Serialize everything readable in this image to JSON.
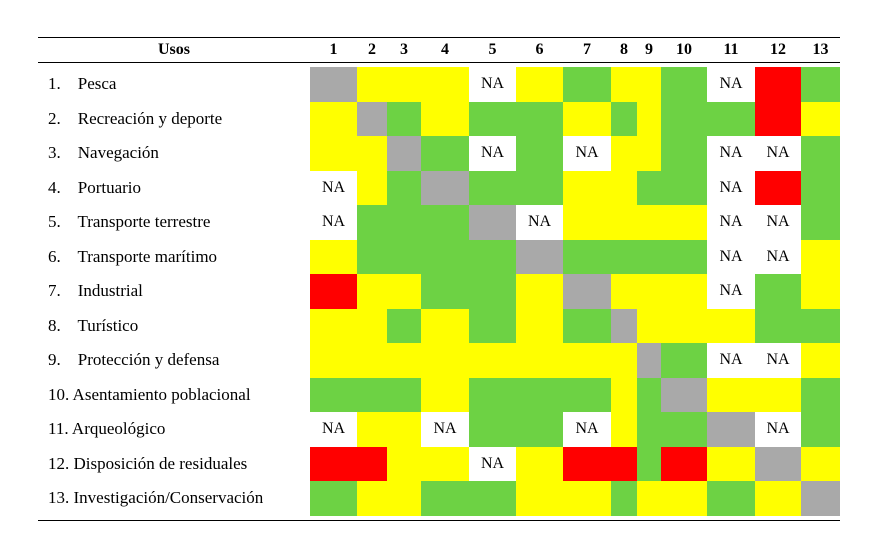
{
  "table": {
    "header_label": "Usos",
    "columns": [
      "1",
      "2",
      "3",
      "4",
      "5",
      "6",
      "7",
      "8",
      "9",
      "10",
      "11",
      "12",
      "13"
    ],
    "rows": [
      {
        "label": "1.    Pesca",
        "cells": [
          "gray",
          "yellow",
          "yellow",
          "yellow",
          "NA",
          "yellow",
          "green",
          "yellow",
          "yellow",
          "green",
          "NA",
          "red",
          "green"
        ]
      },
      {
        "label": "2.    Recreación y deporte",
        "cells": [
          "yellow",
          "gray",
          "green",
          "yellow",
          "green",
          "green",
          "yellow",
          "green",
          "yellow",
          "green",
          "green",
          "red",
          "yellow"
        ]
      },
      {
        "label": "3.    Navegación",
        "cells": [
          "yellow",
          "yellow",
          "gray",
          "green",
          "NA",
          "green",
          "NA",
          "yellow",
          "yellow",
          "green",
          "NA",
          "NA",
          "green"
        ]
      },
      {
        "label": "4.    Portuario",
        "cells": [
          "NA",
          "yellow",
          "green",
          "gray",
          "green",
          "green",
          "yellow",
          "yellow",
          "green",
          "green",
          "NA",
          "red",
          "green"
        ]
      },
      {
        "label": "5.    Transporte terrestre",
        "cells": [
          "NA",
          "green",
          "green",
          "green",
          "gray",
          "NA",
          "yellow",
          "yellow",
          "yellow",
          "yellow",
          "NA",
          "NA",
          "green"
        ]
      },
      {
        "label": "6.    Transporte marítimo",
        "cells": [
          "yellow",
          "green",
          "green",
          "green",
          "green",
          "gray",
          "green",
          "green",
          "green",
          "green",
          "NA",
          "NA",
          "yellow"
        ]
      },
      {
        "label": "7.    Industrial",
        "cells": [
          "red",
          "yellow",
          "yellow",
          "green",
          "green",
          "yellow",
          "gray",
          "yellow",
          "yellow",
          "yellow",
          "NA",
          "green",
          "yellow"
        ]
      },
      {
        "label": "8.    Turístico",
        "cells": [
          "yellow",
          "yellow",
          "green",
          "yellow",
          "green",
          "yellow",
          "green",
          "gray",
          "yellow",
          "yellow",
          "yellow",
          "green",
          "green"
        ]
      },
      {
        "label": "9.    Protección y defensa",
        "cells": [
          "yellow",
          "yellow",
          "yellow",
          "yellow",
          "yellow",
          "yellow",
          "yellow",
          "yellow",
          "gray",
          "green",
          "NA",
          "NA",
          "yellow"
        ]
      },
      {
        "label": "10. Asentamiento poblacional",
        "cells": [
          "green",
          "green",
          "green",
          "yellow",
          "green",
          "green",
          "green",
          "yellow",
          "green",
          "gray",
          "yellow",
          "yellow",
          "green"
        ]
      },
      {
        "label": "11. Arqueológico",
        "cells": [
          "NA",
          "yellow",
          "yellow",
          "NA",
          "green",
          "green",
          "NA",
          "yellow",
          "green",
          "green",
          "gray",
          "NA",
          "green"
        ]
      },
      {
        "label": "12. Disposición de residuales",
        "cells": [
          "red",
          "red",
          "yellow",
          "yellow",
          "NA",
          "yellow",
          "red",
          "red",
          "green",
          "red",
          "yellow",
          "gray",
          "yellow"
        ]
      },
      {
        "label": "13. Investigación/Conservación",
        "cells": [
          "green",
          "yellow",
          "yellow",
          "green",
          "green",
          "yellow",
          "yellow",
          "green",
          "yellow",
          "yellow",
          "green",
          "yellow",
          "gray"
        ]
      }
    ],
    "na_text": "NA"
  },
  "colors": {
    "green": "#6dd244",
    "yellow": "#ffff00",
    "red": "#ff0000",
    "gray": "#a9a9a9",
    "NA": "#ffffff"
  }
}
